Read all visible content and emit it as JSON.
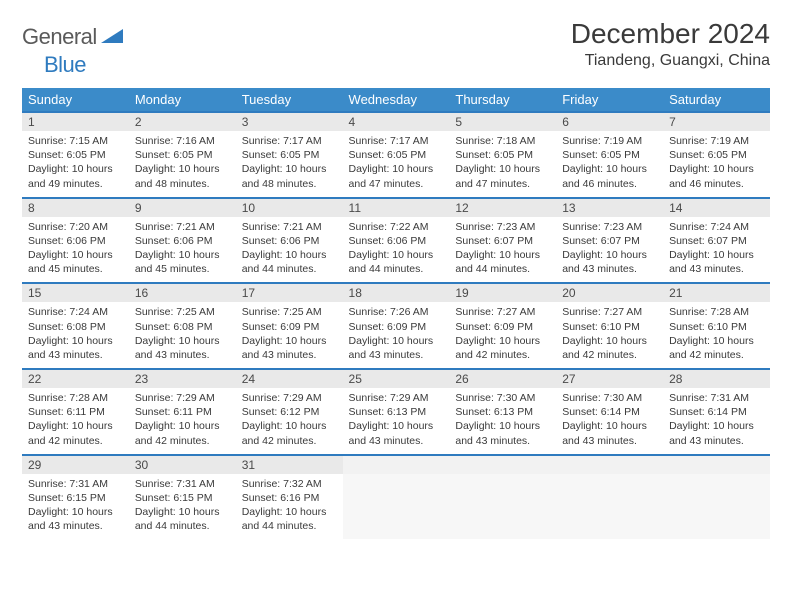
{
  "logo": {
    "text1": "General",
    "text2": "Blue"
  },
  "title": "December 2024",
  "location": "Tiandeng, Guangxi, China",
  "colors": {
    "header_bg": "#3b8bc9",
    "header_text": "#ffffff",
    "daynum_bg": "#e9e9e9",
    "border_accent": "#2f7bbf",
    "logo_gray": "#5a5a5a",
    "logo_blue": "#2f7bbf"
  },
  "day_headers": [
    "Sunday",
    "Monday",
    "Tuesday",
    "Wednesday",
    "Thursday",
    "Friday",
    "Saturday"
  ],
  "weeks": [
    [
      {
        "n": "1",
        "sr": "7:15 AM",
        "ss": "6:05 PM",
        "dl": "10 hours and 49 minutes."
      },
      {
        "n": "2",
        "sr": "7:16 AM",
        "ss": "6:05 PM",
        "dl": "10 hours and 48 minutes."
      },
      {
        "n": "3",
        "sr": "7:17 AM",
        "ss": "6:05 PM",
        "dl": "10 hours and 48 minutes."
      },
      {
        "n": "4",
        "sr": "7:17 AM",
        "ss": "6:05 PM",
        "dl": "10 hours and 47 minutes."
      },
      {
        "n": "5",
        "sr": "7:18 AM",
        "ss": "6:05 PM",
        "dl": "10 hours and 47 minutes."
      },
      {
        "n": "6",
        "sr": "7:19 AM",
        "ss": "6:05 PM",
        "dl": "10 hours and 46 minutes."
      },
      {
        "n": "7",
        "sr": "7:19 AM",
        "ss": "6:05 PM",
        "dl": "10 hours and 46 minutes."
      }
    ],
    [
      {
        "n": "8",
        "sr": "7:20 AM",
        "ss": "6:06 PM",
        "dl": "10 hours and 45 minutes."
      },
      {
        "n": "9",
        "sr": "7:21 AM",
        "ss": "6:06 PM",
        "dl": "10 hours and 45 minutes."
      },
      {
        "n": "10",
        "sr": "7:21 AM",
        "ss": "6:06 PM",
        "dl": "10 hours and 44 minutes."
      },
      {
        "n": "11",
        "sr": "7:22 AM",
        "ss": "6:06 PM",
        "dl": "10 hours and 44 minutes."
      },
      {
        "n": "12",
        "sr": "7:23 AM",
        "ss": "6:07 PM",
        "dl": "10 hours and 44 minutes."
      },
      {
        "n": "13",
        "sr": "7:23 AM",
        "ss": "6:07 PM",
        "dl": "10 hours and 43 minutes."
      },
      {
        "n": "14",
        "sr": "7:24 AM",
        "ss": "6:07 PM",
        "dl": "10 hours and 43 minutes."
      }
    ],
    [
      {
        "n": "15",
        "sr": "7:24 AM",
        "ss": "6:08 PM",
        "dl": "10 hours and 43 minutes."
      },
      {
        "n": "16",
        "sr": "7:25 AM",
        "ss": "6:08 PM",
        "dl": "10 hours and 43 minutes."
      },
      {
        "n": "17",
        "sr": "7:25 AM",
        "ss": "6:09 PM",
        "dl": "10 hours and 43 minutes."
      },
      {
        "n": "18",
        "sr": "7:26 AM",
        "ss": "6:09 PM",
        "dl": "10 hours and 43 minutes."
      },
      {
        "n": "19",
        "sr": "7:27 AM",
        "ss": "6:09 PM",
        "dl": "10 hours and 42 minutes."
      },
      {
        "n": "20",
        "sr": "7:27 AM",
        "ss": "6:10 PM",
        "dl": "10 hours and 42 minutes."
      },
      {
        "n": "21",
        "sr": "7:28 AM",
        "ss": "6:10 PM",
        "dl": "10 hours and 42 minutes."
      }
    ],
    [
      {
        "n": "22",
        "sr": "7:28 AM",
        "ss": "6:11 PM",
        "dl": "10 hours and 42 minutes."
      },
      {
        "n": "23",
        "sr": "7:29 AM",
        "ss": "6:11 PM",
        "dl": "10 hours and 42 minutes."
      },
      {
        "n": "24",
        "sr": "7:29 AM",
        "ss": "6:12 PM",
        "dl": "10 hours and 42 minutes."
      },
      {
        "n": "25",
        "sr": "7:29 AM",
        "ss": "6:13 PM",
        "dl": "10 hours and 43 minutes."
      },
      {
        "n": "26",
        "sr": "7:30 AM",
        "ss": "6:13 PM",
        "dl": "10 hours and 43 minutes."
      },
      {
        "n": "27",
        "sr": "7:30 AM",
        "ss": "6:14 PM",
        "dl": "10 hours and 43 minutes."
      },
      {
        "n": "28",
        "sr": "7:31 AM",
        "ss": "6:14 PM",
        "dl": "10 hours and 43 minutes."
      }
    ],
    [
      {
        "n": "29",
        "sr": "7:31 AM",
        "ss": "6:15 PM",
        "dl": "10 hours and 43 minutes."
      },
      {
        "n": "30",
        "sr": "7:31 AM",
        "ss": "6:15 PM",
        "dl": "10 hours and 44 minutes."
      },
      {
        "n": "31",
        "sr": "7:32 AM",
        "ss": "6:16 PM",
        "dl": "10 hours and 44 minutes."
      },
      null,
      null,
      null,
      null
    ]
  ],
  "labels": {
    "sunrise": "Sunrise:",
    "sunset": "Sunset:",
    "daylight": "Daylight:"
  }
}
